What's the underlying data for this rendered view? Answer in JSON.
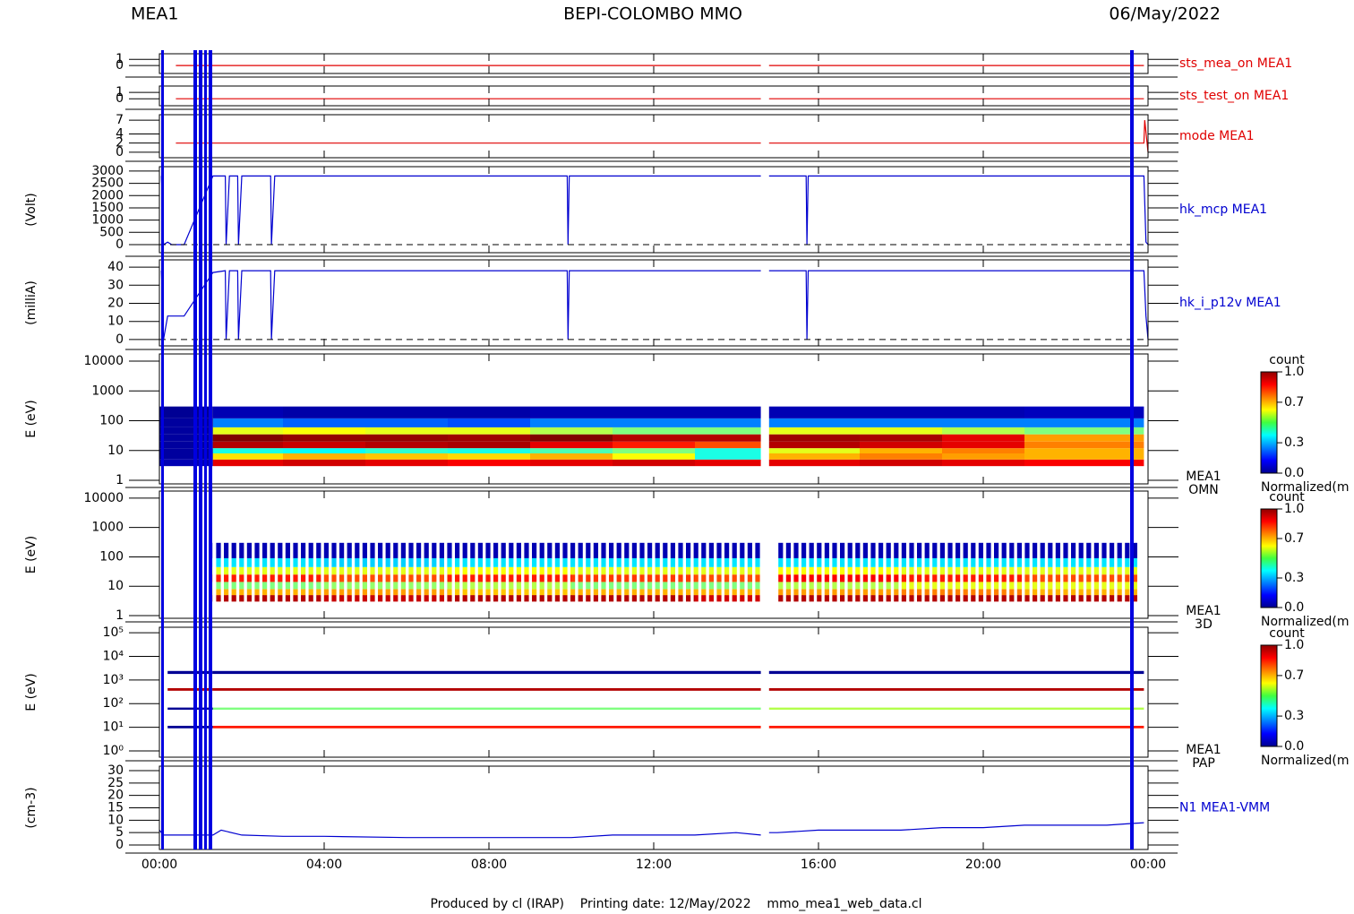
{
  "header": {
    "left": "MEA1",
    "title": "BEPI-COLOMBO MMO",
    "date": "06/May/2022"
  },
  "footer": {
    "text": "Produced by cl (IRAP)    Printing date: 12/May/2022    mmo_mea1_web_data.cl"
  },
  "chart_data": [
    {
      "type": "line",
      "xlim": [
        0,
        24
      ],
      "ylim": [
        -1.3,
        1.9
      ],
      "yticks": [
        0,
        1
      ],
      "series": [
        {
          "name": "sts_mea_on MEA1",
          "color": "#e00000",
          "x": [
            0.4,
            14.6,
            14.7,
            14.8,
            23.9
          ],
          "values": [
            0,
            0,
            null,
            0,
            0
          ]
        }
      ]
    },
    {
      "type": "line",
      "xlim": [
        0,
        24
      ],
      "ylim": [
        -1.1,
        2
      ],
      "yticks": [
        0,
        1
      ],
      "series": [
        {
          "name": "sts_test_on MEA1",
          "color": "#e00000",
          "x": [
            0.4,
            14.6,
            14.7,
            14.8,
            23.9
          ],
          "values": [
            0,
            0,
            null,
            0,
            0
          ]
        }
      ]
    },
    {
      "type": "line",
      "xlim": [
        0,
        24
      ],
      "ylim": [
        -1.2,
        8.2
      ],
      "yticks": [
        0,
        2,
        4,
        7
      ],
      "series": [
        {
          "name": "mode MEA1",
          "color": "#e00000",
          "x": [
            0.4,
            14.6,
            14.7,
            14.8,
            23.9,
            23.92,
            24
          ],
          "values": [
            2,
            2,
            null,
            2,
            2,
            7,
            0
          ]
        }
      ]
    },
    {
      "type": "line",
      "ylabel": "(Volt)",
      "xlim": [
        0,
        24
      ],
      "ylim": [
        -330,
        3180
      ],
      "yticks": [
        0,
        500,
        1000,
        1500,
        2000,
        2500,
        3000
      ],
      "series": [
        {
          "name": "hk_mcp MEA1",
          "color": "#0000d0",
          "x": [
            0.05,
            0.1,
            0.2,
            0.3,
            0.6,
            1.3,
            1.6,
            1.62,
            1.7,
            1.9,
            1.92,
            2.0,
            2.7,
            2.72,
            2.8,
            9.9,
            9.92,
            9.95,
            14.6,
            14.7,
            14.8,
            15.7,
            15.72,
            15.75,
            23.9,
            23.95,
            24
          ],
          "values": [
            2800,
            0,
            100,
            0,
            0,
            2800,
            2800,
            0,
            2800,
            2800,
            0,
            2800,
            2800,
            0,
            2800,
            2800,
            0,
            2800,
            2800,
            null,
            2800,
            2800,
            0,
            2800,
            2800,
            100,
            0
          ]
        }
      ]
    },
    {
      "type": "line",
      "ylabel": "(milliA)",
      "xlim": [
        0,
        24
      ],
      "ylim": [
        -3.5,
        44
      ],
      "yticks": [
        0,
        10,
        20,
        30,
        40
      ],
      "series": [
        {
          "name": "hk_i_p12v MEA1",
          "color": "#0000d0",
          "x": [
            0.05,
            0.1,
            0.2,
            0.3,
            0.6,
            1.3,
            1.6,
            1.62,
            1.7,
            1.9,
            1.92,
            2.0,
            2.7,
            2.72,
            2.8,
            9.9,
            9.92,
            9.95,
            14.6,
            14.7,
            14.8,
            15.7,
            15.72,
            15.75,
            23.9,
            23.95,
            24
          ],
          "values": [
            38,
            0,
            13,
            13,
            13,
            37,
            38,
            0,
            38,
            38,
            0,
            38,
            38,
            0,
            38,
            38,
            0,
            38,
            38,
            null,
            38,
            38,
            0,
            38,
            38,
            13,
            0
          ]
        }
      ]
    },
    {
      "type": "heatmap",
      "ylabel": "E (eV)",
      "label": [
        "MEA1",
        "OMN"
      ],
      "log": true,
      "xlim": [
        0,
        24
      ],
      "ylim": [
        0.76,
        17400
      ],
      "yticks": [
        1,
        10,
        100,
        1000,
        10000
      ],
      "x_bins": [
        0,
        1.3,
        3,
        5,
        7,
        9,
        11,
        13,
        14.6,
        14.8,
        17,
        19,
        21,
        23.9
      ],
      "y_bins": [
        3,
        5,
        8,
        12,
        20,
        35,
        60,
        120,
        300
      ],
      "values": [
        [
          0.05,
          0.9,
          0.92,
          0.9,
          0.88,
          0.9,
          0.92,
          0.9,
          null,
          0.9,
          0.92,
          0.9,
          0.88
        ],
        [
          0.03,
          0.65,
          0.7,
          0.68,
          0.66,
          0.7,
          0.62,
          0.4,
          null,
          0.7,
          0.75,
          0.72,
          0.7
        ],
        [
          0.03,
          0.4,
          0.38,
          0.42,
          0.4,
          0.45,
          0.5,
          0.4,
          null,
          0.6,
          0.7,
          0.75,
          0.7
        ],
        [
          0.03,
          0.95,
          0.93,
          0.95,
          0.96,
          0.9,
          0.85,
          0.8,
          null,
          0.95,
          0.92,
          0.9,
          0.75
        ],
        [
          0.03,
          1.0,
          0.98,
          0.98,
          0.97,
          1.0,
          0.95,
          0.95,
          null,
          0.97,
          0.96,
          0.9,
          0.72
        ],
        [
          0.03,
          0.6,
          0.62,
          0.6,
          0.6,
          0.55,
          0.5,
          0.5,
          null,
          0.6,
          0.6,
          0.55,
          0.5
        ],
        [
          0.03,
          0.25,
          0.22,
          0.22,
          0.2,
          0.25,
          0.25,
          0.25,
          null,
          0.25,
          0.25,
          0.25,
          0.25
        ],
        [
          0.02,
          0.05,
          0.04,
          0.04,
          0.04,
          0.05,
          0.05,
          0.05,
          null,
          0.05,
          0.05,
          0.05,
          0.06
        ]
      ],
      "colorbar": {
        "title": "count",
        "label": "Normalized(m",
        "clim": [
          0,
          1
        ],
        "ticks": [
          {
            "value": 0,
            "label": "0.0"
          },
          {
            "value": 0.3,
            "label": "0.3"
          },
          {
            "value": 0.7,
            "label": "0.7"
          },
          {
            "value": 1,
            "label": "1.0"
          }
        ]
      }
    },
    {
      "type": "heatmap",
      "ylabel": "E (eV)",
      "label": [
        "MEA1",
        "3D"
      ],
      "log": true,
      "striped": true,
      "xlim": [
        0,
        24
      ],
      "ylim": [
        0.81,
        17400
      ],
      "yticks": [
        1,
        10,
        100,
        1000,
        10000
      ],
      "x_bins": [
        1.3,
        4,
        7,
        10,
        13,
        14.6,
        15,
        18,
        21,
        23.8
      ],
      "y_bins": [
        3,
        5,
        8,
        14,
        25,
        45,
        90,
        300
      ],
      "values": [
        [
          0.95,
          0.93,
          0.95,
          0.95,
          0.92,
          null,
          0.95,
          0.95,
          0.95
        ],
        [
          0.7,
          0.72,
          0.68,
          0.7,
          0.7,
          null,
          0.72,
          0.75,
          0.7
        ],
        [
          0.5,
          0.52,
          0.55,
          0.5,
          0.5,
          null,
          0.55,
          0.6,
          0.6
        ],
        [
          0.85,
          0.8,
          0.85,
          0.82,
          0.8,
          null,
          0.88,
          0.85,
          0.8
        ],
        [
          0.6,
          0.6,
          0.62,
          0.6,
          0.6,
          null,
          0.62,
          0.6,
          0.6
        ],
        [
          0.35,
          0.33,
          0.35,
          0.35,
          0.35,
          null,
          0.35,
          0.35,
          0.35
        ],
        [
          0.05,
          0.05,
          0.05,
          0.05,
          0.05,
          null,
          0.05,
          0.05,
          0.05
        ]
      ],
      "colorbar": {
        "title": "count",
        "label": "Normalized(m",
        "clim": [
          0,
          1
        ],
        "ticks": [
          {
            "value": 0,
            "label": "0.0"
          },
          {
            "value": 0.3,
            "label": "0.3"
          },
          {
            "value": 0.7,
            "label": "0.7"
          },
          {
            "value": 1,
            "label": "1.0"
          }
        ]
      }
    },
    {
      "type": "heatmap",
      "ylabel": "E (eV)",
      "label": [
        "MEA1",
        "PAP"
      ],
      "log": true,
      "xlim": [
        0,
        24
      ],
      "ylim": [
        0.54,
        170000
      ],
      "yticks": [
        {
          "value": 1,
          "label": "10⁰"
        },
        {
          "value": 10,
          "label": "10¹"
        },
        {
          "value": 100,
          "label": "10²"
        },
        {
          "value": 1000,
          "label": "10³"
        },
        {
          "value": 10000,
          "label": "10⁴"
        },
        {
          "value": 100000,
          "label": "10⁵"
        }
      ],
      "x_bins": [
        0.2,
        1.3,
        14.6,
        14.8,
        23.9
      ],
      "y_bins": [
        9,
        11.5,
        55,
        68,
        350,
        450,
        1800,
        2400
      ],
      "values": [
        [
          0.02,
          0.85,
          null,
          0.85
        ],
        [
          null,
          null,
          null,
          null
        ],
        [
          0.02,
          0.5,
          null,
          0.55
        ],
        [
          null,
          null,
          null,
          null
        ],
        [
          0.95,
          0.95,
          null,
          0.95
        ],
        [
          null,
          null,
          null,
          null
        ],
        [
          0.02,
          0.02,
          null,
          0.02
        ]
      ],
      "colorbar": {
        "title": "count",
        "label": "Normalized(m",
        "clim": [
          0,
          1
        ],
        "ticks": [
          {
            "value": 0,
            "label": "0.0"
          },
          {
            "value": 0.3,
            "label": "0.3"
          },
          {
            "value": 0.7,
            "label": "0.7"
          },
          {
            "value": 1,
            "label": "1.0"
          }
        ]
      }
    },
    {
      "type": "line",
      "ylabel": "(cm-3)",
      "xlim": [
        0,
        24
      ],
      "ylim": [
        -1.8,
        31.8
      ],
      "yticks": [
        0,
        5,
        10,
        15,
        20,
        25,
        30
      ],
      "xticks": [
        {
          "value": 0,
          "label": "00:00"
        },
        {
          "value": 4,
          "label": "04:00"
        },
        {
          "value": 8,
          "label": "08:00"
        },
        {
          "value": 12,
          "label": "12:00"
        },
        {
          "value": 16,
          "label": "16:00"
        },
        {
          "value": 20,
          "label": "20:00"
        },
        {
          "value": 24,
          "label": "00:00"
        }
      ],
      "series": [
        {
          "name": "N1 MEA1-VMM",
          "color": "#0000d0",
          "x": [
            0,
            0.1,
            1.3,
            1.5,
            2,
            3,
            4,
            6,
            8,
            10,
            11,
            12,
            13,
            14,
            14.6,
            14.7,
            14.8,
            15,
            16,
            17,
            18,
            19,
            20,
            21,
            22,
            23,
            23.9
          ],
          "values": [
            6,
            4,
            4,
            6,
            4,
            3.5,
            3.5,
            3,
            3,
            3,
            4,
            4,
            4,
            5,
            4,
            null,
            5,
            5,
            6,
            6,
            6,
            7,
            7,
            8,
            8,
            8,
            9
          ]
        }
      ]
    }
  ]
}
